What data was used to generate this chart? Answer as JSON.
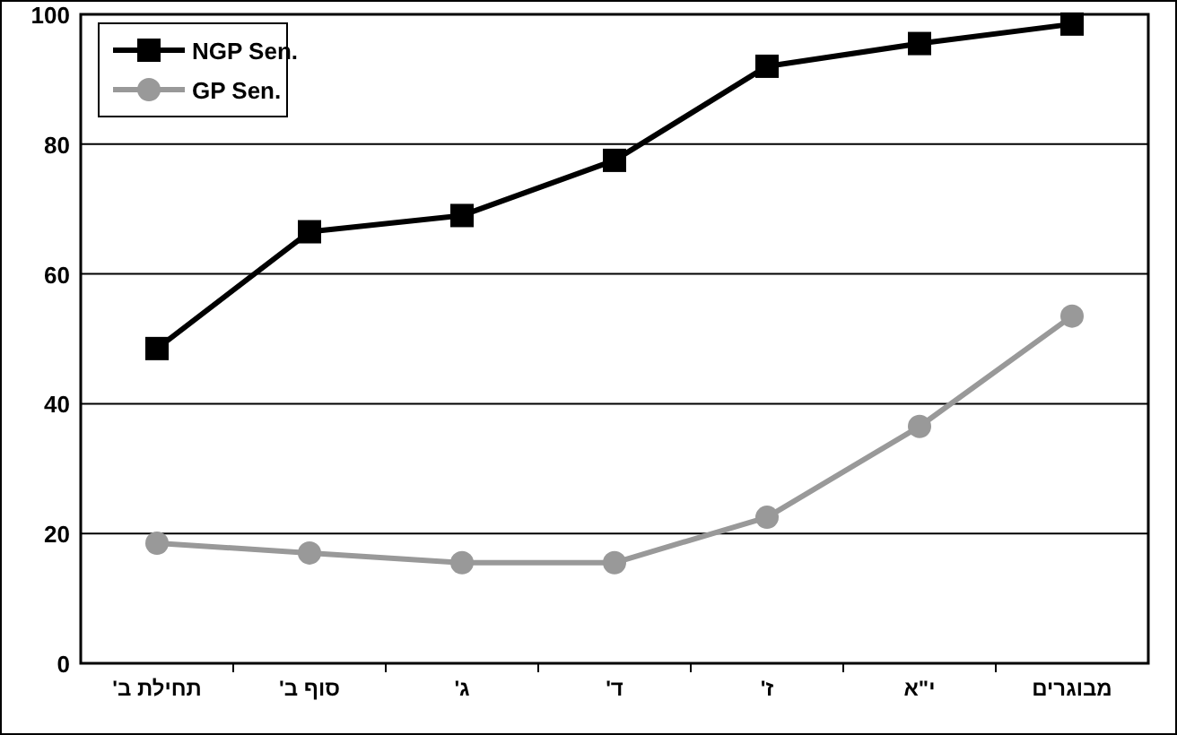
{
  "chart_data": {
    "type": "line",
    "categories": [
      "תחילת ב'",
      "סוף ב'",
      "ג'",
      "ד'",
      "ז'",
      "י\"א",
      "מבוגרים"
    ],
    "series": [
      {
        "name": "NGP Sen.",
        "color": "#000000",
        "marker": "square",
        "values": [
          48.5,
          66.5,
          69,
          77.5,
          92,
          95.5,
          98.5
        ]
      },
      {
        "name": "GP Sen.",
        "color": "#999999",
        "marker": "circle",
        "values": [
          18.5,
          17,
          15.5,
          15.5,
          22.5,
          36.5,
          53.5
        ]
      }
    ],
    "ylim": [
      0,
      100
    ],
    "yticks": [
      0,
      20,
      40,
      60,
      80,
      100
    ],
    "grid": "y",
    "legend": "top left",
    "line_style": "solid"
  }
}
